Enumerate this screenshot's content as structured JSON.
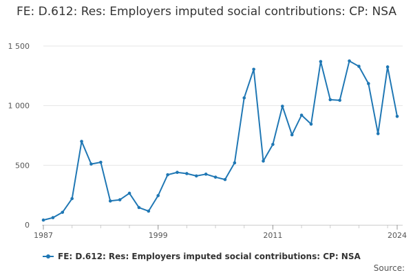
{
  "title": "FE: D.612: Res: Employers imputed social contributions: CP: NSA",
  "source_label": "Source:",
  "colors": {
    "series": "#1f77b4",
    "grid": "#e6e6e6",
    "axis": "#cccccc"
  },
  "chart_data": {
    "type": "line",
    "title": "FE: D.612: Res: Employers imputed social contributions: CP: NSA",
    "xlabel": "",
    "ylabel": "",
    "xlim": [
      1987,
      2024
    ],
    "ylim": [
      0,
      1500
    ],
    "x_ticks": [
      1987,
      1999,
      2011,
      2024
    ],
    "x_tick_labels": [
      "1987",
      "1999",
      "2011",
      "2024"
    ],
    "y_ticks": [
      0,
      500,
      1000,
      1500
    ],
    "y_tick_labels": [
      "0",
      "500",
      "1 000",
      "1 500"
    ],
    "grid": true,
    "legend": "bottom-left",
    "series": [
      {
        "name": "FE: D.612: Res: Employers imputed social contributions: CP: NSA",
        "x": [
          1987,
          1988,
          1989,
          1990,
          1991,
          1992,
          1993,
          1994,
          1995,
          1996,
          1997,
          1998,
          1999,
          2000,
          2001,
          2002,
          2003,
          2004,
          2005,
          2006,
          2007,
          2008,
          2009,
          2010,
          2011,
          2012,
          2013,
          2014,
          2015,
          2016,
          2017,
          2018,
          2019,
          2020,
          2021,
          2022,
          2023,
          2024
        ],
        "values": [
          40,
          60,
          105,
          220,
          700,
          510,
          525,
          200,
          210,
          265,
          145,
          115,
          245,
          420,
          440,
          430,
          410,
          425,
          400,
          380,
          520,
          1065,
          1305,
          535,
          675,
          995,
          755,
          920,
          845,
          1370,
          1050,
          1045,
          1375,
          1330,
          1185,
          765,
          1325,
          910
        ]
      }
    ]
  }
}
